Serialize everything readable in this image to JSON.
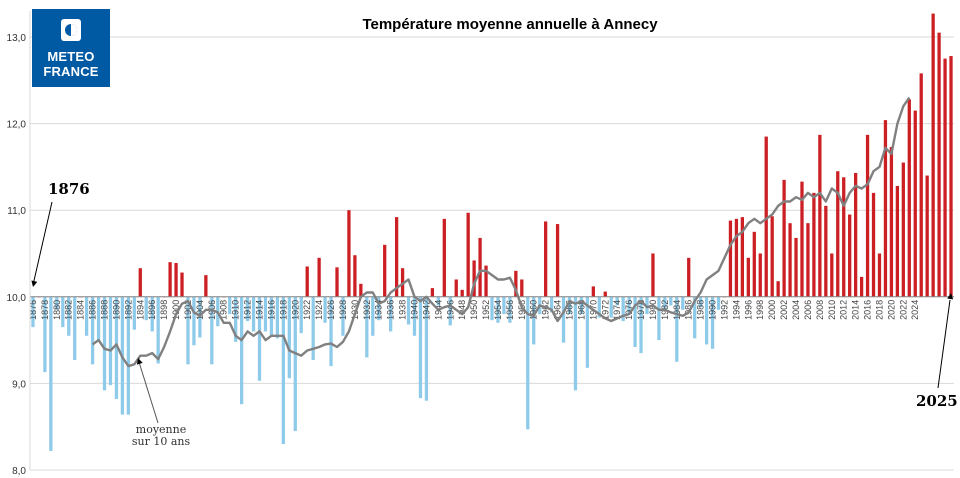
{
  "logo": {
    "line1": "METEO",
    "line2": "FRANCE"
  },
  "annotations": {
    "start": "1876",
    "end": "2025",
    "ma_line1": "moyenne",
    "ma_line2": "sur 10 ans"
  },
  "colors": {
    "above": "#cc1f24",
    "below": "#8ecbea",
    "moving_avg": "#808080",
    "grid": "#d9d9d9",
    "axis": "#888888",
    "logo_bg": "#005aa3"
  },
  "chart_data": {
    "type": "bar",
    "title": "Température moyenne annuelle à Annecy",
    "xlabel": "",
    "ylabel": "",
    "ylim": [
      8.0,
      13.3
    ],
    "baseline": 10.0,
    "y_ticks": [
      "8,0",
      "9,0",
      "10,0",
      "11,0",
      "12,0",
      "13,0"
    ],
    "grid": true,
    "x_tick_step": 2,
    "years_start": 1876,
    "years_end": 2025,
    "series": [
      {
        "name": "moyenne annuelle",
        "values": [
          9.65,
          10.0,
          9.13,
          8.22,
          9.85,
          9.65,
          9.55,
          9.27,
          10.0,
          9.55,
          9.22,
          9.5,
          8.92,
          8.98,
          8.82,
          8.64,
          8.64,
          9.62,
          10.33,
          9.73,
          9.6,
          9.23,
          10.0,
          10.4,
          10.39,
          10.28,
          9.22,
          9.44,
          9.53,
          10.25,
          9.22,
          9.66,
          10.0,
          9.8,
          9.48,
          8.76,
          9.72,
          9.6,
          9.03,
          9.6,
          9.55,
          9.52,
          8.3,
          9.06,
          8.45,
          9.58,
          10.35,
          9.27,
          10.45,
          9.7,
          9.2,
          10.34,
          9.55,
          11.0,
          10.48,
          10.15,
          9.3,
          9.55,
          9.73,
          10.6,
          9.6,
          10.92,
          10.33,
          9.68,
          9.55,
          8.83,
          8.8,
          10.1,
          9.9,
          10.9,
          9.67,
          10.2,
          10.08,
          10.97,
          10.42,
          10.68,
          10.36,
          9.73,
          9.7,
          9.8,
          9.7,
          10.3,
          10.2,
          8.47,
          9.45,
          9.8,
          10.87,
          9.82,
          10.84,
          9.47,
          9.8,
          8.92,
          9.8,
          9.18,
          10.12,
          9.76,
          10.06,
          9.76,
          9.9,
          9.72,
          9.8,
          9.42,
          9.35,
          9.8,
          10.5,
          9.5,
          9.85,
          9.9,
          9.25,
          9.85,
          10.45,
          9.52,
          9.88,
          9.45,
          9.4,
          9.85,
          10.0,
          10.88,
          10.9,
          10.92,
          10.45,
          10.75,
          10.5,
          11.85,
          10.93,
          10.18,
          11.35,
          10.85,
          10.68,
          11.33,
          10.85,
          11.2,
          11.87,
          11.05,
          10.5,
          11.45,
          11.38,
          10.95,
          11.43,
          10.23,
          11.87,
          11.2,
          10.5,
          12.04,
          11.73,
          11.28,
          11.55,
          12.28,
          12.15,
          12.58,
          11.4,
          13.27,
          13.05,
          12.75,
          12.78
        ]
      }
    ],
    "moving_average": {
      "start_year": 1886,
      "values": [
        9.45,
        9.5,
        9.4,
        9.38,
        9.45,
        9.3,
        9.2,
        9.22,
        9.32,
        9.32,
        9.35,
        9.28,
        9.42,
        9.6,
        9.8,
        9.92,
        9.95,
        9.82,
        9.78,
        9.85,
        9.85,
        9.82,
        9.7,
        9.7,
        9.55,
        9.5,
        9.6,
        9.55,
        9.6,
        9.5,
        9.55,
        9.55,
        9.55,
        9.38,
        9.35,
        9.32,
        9.38,
        9.4,
        9.42,
        9.45,
        9.46,
        9.42,
        9.48,
        9.6,
        9.8,
        10.0,
        10.05,
        10.05,
        9.92,
        9.95,
        10.05,
        10.1,
        10.15,
        10.2,
        10.0,
        9.95,
        10.0,
        9.92,
        9.85,
        9.88,
        9.9,
        9.85,
        9.8,
        9.88,
        10.15,
        10.3,
        10.3,
        10.25,
        10.2,
        10.2,
        10.22,
        10.08,
        9.88,
        9.8,
        9.78,
        9.9,
        9.88,
        9.85,
        9.72,
        9.82,
        9.95,
        9.92,
        9.95,
        9.9,
        9.85,
        9.8,
        9.75,
        9.72,
        9.75,
        9.78,
        9.8,
        9.9,
        9.95,
        9.88,
        9.9,
        9.85,
        9.85,
        9.82,
        9.8,
        9.78,
        9.82,
        9.95,
        10.05,
        10.2,
        10.25,
        10.3,
        10.45,
        10.6,
        10.7,
        10.75,
        10.85,
        10.9,
        10.85,
        10.9,
        10.95,
        11.05,
        11.1,
        11.1,
        11.15,
        11.12,
        11.2,
        11.15,
        11.2,
        11.1,
        11.25,
        11.2,
        11.05,
        11.2,
        11.28,
        11.25,
        11.3,
        11.45,
        11.5,
        11.72,
        11.65,
        12.0,
        12.2,
        12.3
      ]
    }
  }
}
